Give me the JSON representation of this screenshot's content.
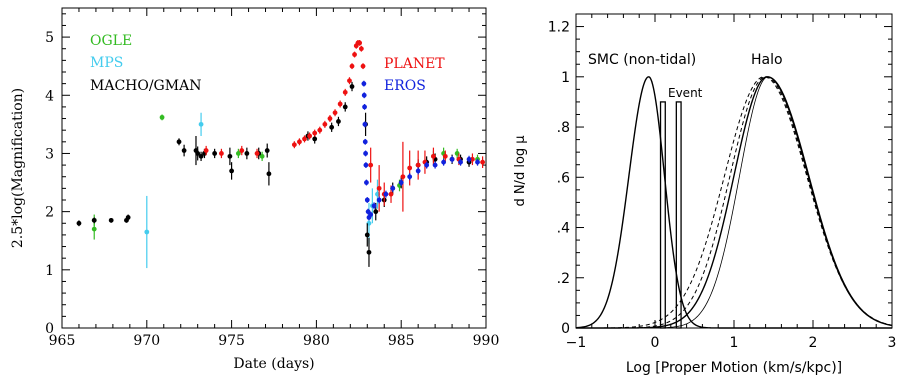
{
  "chart_data": [
    {
      "type": "scatter",
      "title": "",
      "xlabel": "Date (days)",
      "ylabel": "2.5*log(Magnification)",
      "xlim": [
        965,
        990
      ],
      "ylim": [
        0,
        5.5
      ],
      "xticks": [
        965,
        970,
        975,
        980,
        985,
        990
      ],
      "yticks": [
        0,
        1,
        2,
        3,
        4,
        5
      ],
      "xtick_labels": [
        "965",
        "970",
        "975",
        "980",
        "985",
        "990"
      ],
      "ytick_labels": [
        "0",
        "1",
        "2",
        "3",
        "4",
        "5"
      ],
      "legend_left": [
        "OGLE",
        "MPS",
        "MACHO/GMAN"
      ],
      "legend_right": [
        "PLANET",
        "EROS"
      ],
      "series": [
        {
          "name": "OGLE",
          "color": "#33bb22",
          "x": [
            966.9,
            966.9,
            970.9,
            975.4,
            976.8,
            984.9,
            986.9,
            987.5,
            988.3,
            989.5
          ],
          "y": [
            1.7,
            1.85,
            3.62,
            3.0,
            2.95,
            2.45,
            2.95,
            3.0,
            3.0,
            2.9
          ],
          "err": [
            0.18,
            0.1,
            0.05,
            0.08,
            0.08,
            0.1,
            0.1,
            0.1,
            0.08,
            0.08
          ]
        },
        {
          "name": "MPS",
          "color": "#44ccee",
          "x": [
            970.0,
            973.2,
            983.1,
            983.3,
            983.6
          ],
          "y": [
            1.65,
            3.5,
            1.8,
            2.1,
            2.3
          ],
          "err": [
            0.62,
            0.2,
            0.35,
            0.3,
            0.25
          ]
        },
        {
          "name": "MACHO/GMAN",
          "color": "#000000",
          "x": [
            966.0,
            966.9,
            967.9,
            968.8,
            968.9,
            971.9,
            972.2,
            972.9,
            973.0,
            973.2,
            973.4,
            974.0,
            974.9,
            975.0,
            975.9,
            976.6,
            977.1,
            977.2,
            979.5,
            979.9,
            980.9,
            981.3,
            981.7,
            982.1,
            982.9,
            983.0,
            983.1,
            983.5,
            984.0,
            984.5,
            985.0,
            986.0,
            986.5,
            987.0,
            988.0,
            988.5,
            989.0
          ],
          "y": [
            1.8,
            1.85,
            1.85,
            1.85,
            1.9,
            3.2,
            3.05,
            3.05,
            3.0,
            2.95,
            3.0,
            3.0,
            2.95,
            2.7,
            3.0,
            3.0,
            3.05,
            2.65,
            3.3,
            3.25,
            3.45,
            3.55,
            3.8,
            4.15,
            3.5,
            1.6,
            1.3,
            2.0,
            2.2,
            2.4,
            2.5,
            2.8,
            2.85,
            2.9,
            2.9,
            2.9,
            2.85
          ],
          "err": [
            0.05,
            0.05,
            0.04,
            0.04,
            0.05,
            0.06,
            0.1,
            0.25,
            0.12,
            0.08,
            0.08,
            0.08,
            0.15,
            0.15,
            0.1,
            0.1,
            0.12,
            0.2,
            0.08,
            0.08,
            0.08,
            0.08,
            0.08,
            0.08,
            0.2,
            0.2,
            0.25,
            0.15,
            0.12,
            0.1,
            0.1,
            0.1,
            0.1,
            0.1,
            0.08,
            0.08,
            0.08
          ]
        },
        {
          "name": "PLANET",
          "color": "#ee1111",
          "x": [
            973.5,
            974.4,
            975.6,
            976.5,
            978.7,
            979.0,
            979.3,
            979.6,
            979.9,
            980.2,
            980.5,
            980.8,
            981.1,
            981.4,
            981.7,
            981.95,
            982.1,
            982.25,
            982.35,
            982.45,
            982.55,
            982.65,
            982.75,
            983.2,
            983.7,
            984.0,
            984.4,
            985.1,
            985.5,
            986.0,
            986.4,
            986.9,
            987.6,
            988.4,
            989.2,
            989.8
          ],
          "y": [
            3.05,
            3.0,
            3.05,
            3.0,
            3.15,
            3.2,
            3.25,
            3.3,
            3.35,
            3.4,
            3.5,
            3.6,
            3.7,
            3.85,
            4.05,
            4.25,
            4.5,
            4.7,
            4.85,
            4.9,
            4.9,
            4.8,
            4.5,
            2.8,
            2.4,
            2.3,
            2.3,
            2.6,
            2.75,
            2.8,
            2.85,
            2.95,
            2.95,
            2.9,
            2.9,
            2.85
          ],
          "err": [
            0.08,
            0.08,
            0.08,
            0.08,
            0.06,
            0.06,
            0.06,
            0.06,
            0.06,
            0.06,
            0.06,
            0.06,
            0.06,
            0.06,
            0.06,
            0.06,
            0.05,
            0.05,
            0.05,
            0.05,
            0.05,
            0.05,
            0.05,
            0.3,
            0.4,
            0.2,
            0.15,
            0.6,
            0.3,
            0.25,
            0.2,
            0.15,
            0.1,
            0.1,
            0.1,
            0.1
          ]
        },
        {
          "name": "EROS",
          "color": "#1122dd",
          "x": [
            982.8,
            982.82,
            982.84,
            982.86,
            982.88,
            982.9,
            982.92,
            982.95,
            983.0,
            983.05,
            983.1,
            983.2,
            983.4,
            983.7,
            984.1,
            984.5,
            985.0,
            985.5,
            986.0,
            986.5,
            987.0,
            987.5,
            988.0,
            988.5,
            989.0,
            989.5
          ],
          "y": [
            4.2,
            4.0,
            3.8,
            3.5,
            3.2,
            3.0,
            2.8,
            2.5,
            2.2,
            2.0,
            1.9,
            1.95,
            2.1,
            2.2,
            2.3,
            2.4,
            2.5,
            2.6,
            2.7,
            2.8,
            2.8,
            2.85,
            2.9,
            2.85,
            2.9,
            2.85
          ],
          "err": [
            0.05,
            0.05,
            0.05,
            0.05,
            0.05,
            0.05,
            0.05,
            0.05,
            0.05,
            0.05,
            0.05,
            0.05,
            0.06,
            0.06,
            0.06,
            0.06,
            0.06,
            0.06,
            0.06,
            0.06,
            0.06,
            0.06,
            0.06,
            0.06,
            0.06,
            0.06
          ]
        }
      ]
    },
    {
      "type": "line",
      "title": "",
      "xlabel": "Log [Proper Motion (km/s/kpc)]",
      "ylabel": "d N/d log μ",
      "xlim": [
        -1,
        3
      ],
      "ylim": [
        0,
        1.25
      ],
      "xticks": [
        -1,
        0,
        1,
        2,
        3
      ],
      "yticks": [
        0,
        0.2,
        0.4,
        0.6,
        0.8,
        1.0,
        1.2
      ],
      "xtick_labels": [
        "−1",
        "0",
        "1",
        "2",
        "3"
      ],
      "ytick_labels": [
        "0",
        ".2",
        ".4",
        ".6",
        ".8",
        "1",
        "1.2"
      ],
      "annotations": [
        "SMC (non-tidal)",
        "Halo",
        "Event"
      ],
      "curves": [
        {
          "label": "SMC (non-tidal)",
          "center": -0.08,
          "sigma_left": 0.25,
          "sigma_right": 0.2,
          "style": "solid",
          "width": 1.4
        },
        {
          "label": "Halo",
          "center": 1.42,
          "sigma_left": 0.42,
          "sigma_right": 0.52,
          "style": "solid",
          "width": 1.4
        },
        {
          "label": "",
          "center": 1.43,
          "sigma_left": 0.36,
          "sigma_right": 0.52,
          "style": "solid",
          "width": 0.8
        },
        {
          "label": "",
          "center": 1.4,
          "sigma_left": 0.45,
          "sigma_right": 0.53,
          "style": "dashed",
          "width": 1.0
        },
        {
          "label": "",
          "center": 1.38,
          "sigma_left": 0.5,
          "sigma_right": 0.54,
          "style": "dashed",
          "width": 1.0
        }
      ],
      "event_boxes": [
        {
          "x0": 0.07,
          "x1": 0.13,
          "height": 0.9
        },
        {
          "x0": 0.27,
          "x1": 0.33,
          "height": 0.9
        }
      ]
    }
  ]
}
